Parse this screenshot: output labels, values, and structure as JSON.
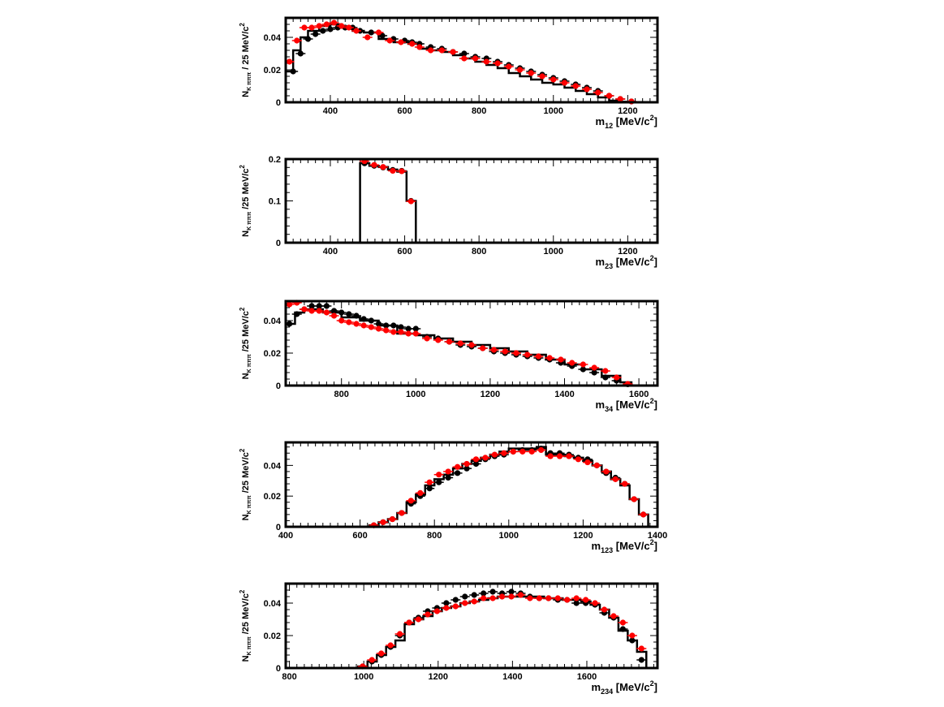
{
  "chart_data": [
    {
      "type": "scatter",
      "id": "m12",
      "ylabel": {
        "main": "N",
        "sub": "K πππ",
        "rest": " / 25 MeV/c",
        "sup": "2"
      },
      "xlabel": {
        "main": "m",
        "sub": "12",
        "rest": " [MeV/c",
        "sup": "2",
        "tail": "]"
      },
      "xlim": [
        280,
        1280
      ],
      "ylim": [
        0,
        0.052
      ],
      "xticks": [
        "400",
        "600",
        "800",
        "1000",
        "1200"
      ],
      "yticks": [
        "0",
        "0.02",
        "0.04"
      ],
      "grid": false,
      "series": [
        {
          "kind": "histogram",
          "color": "#000000",
          "x": [
            280,
            300,
            320,
            340,
            370,
            400,
            430,
            460,
            490,
            530,
            570,
            610,
            640,
            670,
            700,
            730,
            760,
            790,
            820,
            850,
            880,
            910,
            940,
            970,
            1000,
            1030,
            1060,
            1090,
            1120,
            1150,
            1180,
            1210,
            1230
          ],
          "values": [
            0.019,
            0.032,
            0.04,
            0.044,
            0.047,
            0.048,
            0.046,
            0.044,
            0.043,
            0.039,
            0.037,
            0.036,
            0.033,
            0.032,
            0.031,
            0.029,
            0.027,
            0.025,
            0.023,
            0.021,
            0.018,
            0.016,
            0.014,
            0.012,
            0.011,
            0.009,
            0.007,
            0.005,
            0.003,
            0.001,
            0.0003,
            0
          ]
        },
        {
          "kind": "points",
          "color": "#000000",
          "x": [
            300,
            320,
            340,
            360,
            380,
            400,
            420,
            440,
            460,
            480,
            510,
            540,
            570,
            600,
            620,
            640,
            670,
            700,
            730,
            760,
            790,
            820,
            850,
            880,
            910,
            940,
            970,
            1000,
            1030,
            1060,
            1090,
            1120,
            1150,
            1180,
            1210
          ],
          "values": [
            0.019,
            0.03,
            0.039,
            0.042,
            0.044,
            0.045,
            0.046,
            0.046,
            0.046,
            0.044,
            0.043,
            0.041,
            0.039,
            0.038,
            0.037,
            0.036,
            0.034,
            0.033,
            0.031,
            0.03,
            0.028,
            0.027,
            0.025,
            0.023,
            0.021,
            0.019,
            0.017,
            0.015,
            0.013,
            0.011,
            0.009,
            0.007,
            0.004,
            0.002,
            0.0005
          ]
        },
        {
          "kind": "points",
          "color": "#ff0000",
          "x": [
            290,
            310,
            330,
            350,
            370,
            390,
            410,
            430,
            450,
            470,
            500,
            530,
            560,
            590,
            620,
            640,
            670,
            700,
            730,
            760,
            790,
            820,
            850,
            880,
            910,
            940,
            970,
            1000,
            1030,
            1060,
            1090,
            1120,
            1150,
            1180,
            1210
          ],
          "values": [
            0.025,
            0.038,
            0.046,
            0.046,
            0.047,
            0.048,
            0.049,
            0.047,
            0.046,
            0.044,
            0.04,
            0.043,
            0.038,
            0.037,
            0.036,
            0.034,
            0.032,
            0.032,
            0.031,
            0.027,
            0.027,
            0.025,
            0.024,
            0.022,
            0.02,
            0.018,
            0.016,
            0.014,
            0.012,
            0.01,
            0.008,
            0.006,
            0.004,
            0.002,
            0.0005
          ]
        }
      ]
    },
    {
      "type": "scatter",
      "id": "m23",
      "ylabel": {
        "main": "N",
        "sub": "K πππ",
        "rest": " /25 MeV/c",
        "sup": "2"
      },
      "xlabel": {
        "main": "m",
        "sub": "23",
        "rest": " [MeV/c",
        "sup": "2",
        "tail": "]"
      },
      "xlim": [
        280,
        1280
      ],
      "ylim": [
        0,
        0.2
      ],
      "xticks": [
        "400",
        "600",
        "800",
        "1000",
        "1200"
      ],
      "yticks": [
        "0",
        "0.1",
        "0.2"
      ],
      "grid": false,
      "series": [
        {
          "kind": "histogram",
          "color": "#000000",
          "x": [
            480,
            505,
            530,
            555,
            580,
            605,
            630
          ],
          "values": [
            0.19,
            0.184,
            0.181,
            0.175,
            0.17,
            0.1
          ]
        },
        {
          "kind": "points",
          "color": "#000000",
          "x": [
            492,
            518,
            542,
            568,
            592,
            617
          ],
          "values": [
            0.19,
            0.184,
            0.18,
            0.174,
            0.172,
            0.1
          ]
        },
        {
          "kind": "points",
          "color": "#ff0000",
          "x": [
            492,
            518,
            542,
            568,
            592,
            617
          ],
          "values": [
            0.195,
            0.186,
            0.181,
            0.172,
            0.171,
            0.099
          ]
        }
      ]
    },
    {
      "type": "scatter",
      "id": "m34",
      "ylabel": {
        "main": "N",
        "sub": "K πππ",
        "rest": " /25 MeV/c",
        "sup": "2"
      },
      "xlabel": {
        "main": "m",
        "sub": "34",
        "rest": " [MeV/c",
        "sup": "2",
        "tail": "]"
      },
      "xlim": [
        650,
        1650
      ],
      "ylim": [
        0,
        0.052
      ],
      "xticks": [
        "800",
        "1000",
        "1200",
        "1400",
        "1600"
      ],
      "yticks": [
        "0",
        "0.02",
        "0.04"
      ],
      "grid": false,
      "series": [
        {
          "kind": "histogram",
          "color": "#000000",
          "x": [
            650,
            675,
            700,
            750,
            800,
            850,
            900,
            950,
            1000,
            1050,
            1100,
            1150,
            1200,
            1250,
            1300,
            1350,
            1400,
            1450,
            1500,
            1550,
            1580
          ],
          "values": [
            0.038,
            0.045,
            0.047,
            0.045,
            0.042,
            0.04,
            0.037,
            0.032,
            0.031,
            0.029,
            0.027,
            0.025,
            0.023,
            0.021,
            0.019,
            0.016,
            0.013,
            0.01,
            0.006,
            0.002
          ]
        },
        {
          "kind": "points",
          "color": "#000000",
          "x": [
            660,
            680,
            700,
            720,
            740,
            760,
            780,
            800,
            820,
            840,
            860,
            880,
            900,
            920,
            940,
            960,
            980,
            1000,
            1030,
            1060,
            1090,
            1120,
            1150,
            1180,
            1210,
            1240,
            1270,
            1300,
            1330,
            1360,
            1390,
            1420,
            1450,
            1480,
            1510,
            1540,
            1570
          ],
          "values": [
            0.038,
            0.044,
            0.047,
            0.049,
            0.049,
            0.049,
            0.046,
            0.045,
            0.044,
            0.043,
            0.041,
            0.04,
            0.038,
            0.037,
            0.037,
            0.036,
            0.035,
            0.035,
            0.03,
            0.029,
            0.027,
            0.025,
            0.024,
            0.023,
            0.021,
            0.02,
            0.019,
            0.018,
            0.017,
            0.016,
            0.014,
            0.012,
            0.01,
            0.008,
            0.005,
            0.003,
            0.0008
          ]
        },
        {
          "kind": "points",
          "color": "#ff0000",
          "x": [
            660,
            680,
            700,
            720,
            740,
            760,
            780,
            800,
            820,
            840,
            860,
            880,
            900,
            920,
            940,
            960,
            980,
            1000,
            1030,
            1060,
            1090,
            1120,
            1150,
            1180,
            1210,
            1240,
            1270,
            1300,
            1330,
            1360,
            1390,
            1420,
            1450,
            1480,
            1510,
            1540,
            1570
          ],
          "values": [
            0.05,
            0.051,
            0.047,
            0.046,
            0.046,
            0.045,
            0.043,
            0.04,
            0.039,
            0.038,
            0.037,
            0.036,
            0.035,
            0.034,
            0.033,
            0.033,
            0.032,
            0.032,
            0.029,
            0.028,
            0.027,
            0.026,
            0.025,
            0.023,
            0.022,
            0.021,
            0.02,
            0.019,
            0.018,
            0.017,
            0.016,
            0.014,
            0.013,
            0.011,
            0.009,
            0.005,
            0.001
          ]
        }
      ]
    },
    {
      "type": "scatter",
      "id": "m123",
      "ylabel": {
        "main": "N",
        "sub": "K πππ",
        "rest": " /25 MeV/c",
        "sup": "2"
      },
      "xlabel": {
        "main": "m",
        "sub": "123",
        "rest": " [MeV/c",
        "sup": "2",
        "tail": "]"
      },
      "xlim": [
        400,
        1400
      ],
      "ylim": [
        0,
        0.055
      ],
      "xticks": [
        "400",
        "600",
        "800",
        "1000",
        "1200",
        "1400"
      ],
      "yticks": [
        "0",
        "0.02",
        "0.04"
      ],
      "grid": false,
      "series": [
        {
          "kind": "histogram",
          "color": "#000000",
          "x": [
            400,
            625,
            650,
            675,
            700,
            725,
            750,
            775,
            800,
            825,
            850,
            875,
            900,
            925,
            950,
            975,
            1000,
            1025,
            1050,
            1075,
            1100,
            1125,
            1150,
            1175,
            1200,
            1225,
            1250,
            1275,
            1300,
            1325,
            1350,
            1375
          ],
          "values": [
            0,
            0.001,
            0.003,
            0.005,
            0.009,
            0.016,
            0.021,
            0.027,
            0.031,
            0.034,
            0.038,
            0.041,
            0.043,
            0.045,
            0.047,
            0.049,
            0.051,
            0.051,
            0.051,
            0.052,
            0.047,
            0.047,
            0.046,
            0.045,
            0.043,
            0.04,
            0.036,
            0.031,
            0.027,
            0.018,
            0.008
          ]
        },
        {
          "kind": "points",
          "color": "#000000",
          "x": [
            637,
            662,
            687,
            712,
            737,
            762,
            787,
            812,
            837,
            862,
            887,
            912,
            937,
            962,
            987,
            1012,
            1037,
            1062,
            1087,
            1112,
            1137,
            1162,
            1187,
            1212,
            1237,
            1262,
            1287,
            1312,
            1337,
            1362
          ],
          "values": [
            0.001,
            0.003,
            0.005,
            0.009,
            0.015,
            0.02,
            0.025,
            0.029,
            0.032,
            0.035,
            0.038,
            0.041,
            0.044,
            0.046,
            0.047,
            0.049,
            0.05,
            0.05,
            0.051,
            0.048,
            0.048,
            0.047,
            0.045,
            0.044,
            0.04,
            0.035,
            0.032,
            0.028,
            0.018,
            0.008
          ]
        },
        {
          "kind": "points",
          "color": "#ff0000",
          "x": [
            637,
            662,
            687,
            712,
            737,
            762,
            787,
            812,
            837,
            862,
            887,
            912,
            937,
            962,
            987,
            1012,
            1037,
            1062,
            1087,
            1112,
            1137,
            1162,
            1187,
            1212,
            1237,
            1262,
            1287,
            1312,
            1337,
            1362
          ],
          "values": [
            0.001,
            0.003,
            0.005,
            0.009,
            0.017,
            0.022,
            0.029,
            0.034,
            0.036,
            0.039,
            0.041,
            0.044,
            0.045,
            0.047,
            0.048,
            0.049,
            0.049,
            0.049,
            0.05,
            0.046,
            0.046,
            0.046,
            0.044,
            0.042,
            0.04,
            0.036,
            0.031,
            0.028,
            0.018,
            0.008
          ]
        }
      ]
    },
    {
      "type": "scatter",
      "id": "m234",
      "ylabel": {
        "main": "N",
        "sub": "K πππ",
        "rest": " /25 MeV/c",
        "sup": "2"
      },
      "xlabel": {
        "main": "m",
        "sub": "234",
        "rest": " [MeV/c",
        "sup": "2",
        "tail": "]"
      },
      "xlim": [
        790,
        1790
      ],
      "ylim": [
        0,
        0.052
      ],
      "xticks": [
        "800",
        "1000",
        "1200",
        "1400",
        "1600"
      ],
      "yticks": [
        "0",
        "0.02",
        "0.04"
      ],
      "grid": false,
      "series": [
        {
          "kind": "histogram",
          "color": "#000000",
          "x": [
            790,
            985,
            1010,
            1035,
            1060,
            1085,
            1110,
            1135,
            1160,
            1185,
            1210,
            1235,
            1260,
            1285,
            1310,
            1335,
            1360,
            1385,
            1410,
            1435,
            1460,
            1485,
            1510,
            1535,
            1560,
            1585,
            1610,
            1635,
            1660,
            1685,
            1710,
            1735,
            1760
          ],
          "values": [
            0,
            0.001,
            0.004,
            0.008,
            0.013,
            0.017,
            0.027,
            0.03,
            0.032,
            0.035,
            0.037,
            0.038,
            0.04,
            0.041,
            0.042,
            0.043,
            0.044,
            0.044,
            0.044,
            0.044,
            0.044,
            0.043,
            0.043,
            0.042,
            0.042,
            0.041,
            0.039,
            0.036,
            0.031,
            0.023,
            0.017,
            0.01
          ]
        },
        {
          "kind": "points",
          "color": "#000000",
          "x": [
            997,
            1022,
            1047,
            1072,
            1097,
            1122,
            1147,
            1172,
            1197,
            1222,
            1247,
            1272,
            1297,
            1322,
            1347,
            1372,
            1397,
            1422,
            1447,
            1472,
            1497,
            1522,
            1547,
            1572,
            1597,
            1622,
            1647,
            1672,
            1697,
            1722,
            1747
          ],
          "values": [
            0.001,
            0.004,
            0.008,
            0.013,
            0.02,
            0.028,
            0.031,
            0.035,
            0.037,
            0.04,
            0.042,
            0.044,
            0.045,
            0.046,
            0.047,
            0.046,
            0.047,
            0.046,
            0.044,
            0.043,
            0.043,
            0.042,
            0.042,
            0.04,
            0.04,
            0.039,
            0.034,
            0.031,
            0.024,
            0.017,
            0.005
          ]
        },
        {
          "kind": "points",
          "color": "#ff0000",
          "x": [
            997,
            1022,
            1047,
            1072,
            1097,
            1122,
            1147,
            1172,
            1197,
            1222,
            1247,
            1272,
            1297,
            1322,
            1347,
            1372,
            1397,
            1422,
            1447,
            1472,
            1497,
            1522,
            1547,
            1572,
            1597,
            1622,
            1647,
            1672,
            1697,
            1722,
            1747
          ],
          "values": [
            0.001,
            0.005,
            0.009,
            0.014,
            0.021,
            0.028,
            0.03,
            0.033,
            0.035,
            0.037,
            0.038,
            0.04,
            0.041,
            0.043,
            0.043,
            0.044,
            0.044,
            0.045,
            0.043,
            0.043,
            0.043,
            0.043,
            0.042,
            0.043,
            0.042,
            0.04,
            0.036,
            0.032,
            0.028,
            0.02,
            0.012
          ]
        }
      ]
    }
  ]
}
